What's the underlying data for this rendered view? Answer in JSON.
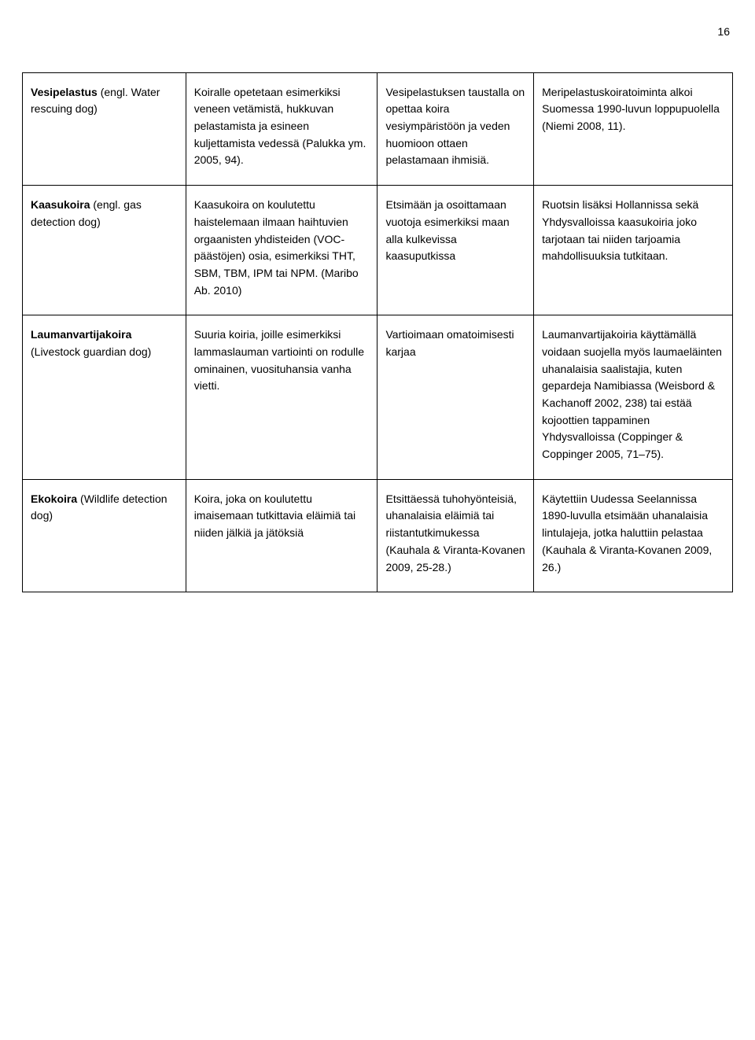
{
  "page_number": "16",
  "rows": [
    {
      "term_bold": "Vesipelastus",
      "term_rest": " (engl. Water rescuing dog)",
      "c2": "Koiralle opetetaan esimerkiksi veneen vetämistä, hukkuvan pelastamista ja esineen kuljettamista vedessä (Palukka ym. 2005, 94).",
      "c3": "Vesipelastuksen taustalla on opettaa koira vesiympäristöön ja veden huomioon ottaen pelastamaan ihmisiä.",
      "c4": "Meripelastuskoiratoiminta alkoi Suomessa 1990-luvun loppupuolella (Niemi 2008, 11)."
    },
    {
      "term_bold": "Kaasukoira",
      "term_rest": " (engl. gas detection dog)",
      "c2": "Kaasukoira on koulutettu haistelemaan ilmaan haihtuvien orgaanisten yhdisteiden (VOC-päästöjen) osia, esimerkiksi THT, SBM, TBM, IPM tai NPM. (Maribo Ab. 2010)",
      "c3": "Etsimään ja osoittamaan vuotoja esimerkiksi maan alla kulkevissa kaasuputkissa",
      "c4": "Ruotsin lisäksi Hollannissa sekä Yhdysvalloissa kaasukoiria joko tarjotaan tai niiden tarjoamia mahdollisuuksia tutkitaan."
    },
    {
      "term_bold": "Laumanvartijakoira",
      "term_rest": " (Livestock guardian dog)",
      "c2": "Suuria koiria, joille esimerkiksi lammaslauman vartiointi on rodulle ominainen, vuosituhansia vanha vietti.",
      "c3": "Vartioimaan omatoimisesti karjaa",
      "c4": "Laumanvartijakoiria käyttämällä voidaan suojella myös laumaeläinten uhanalaisia saalistajia, kuten gepardeja Namibiassa (Weisbord & Kachanoff 2002, 238) tai estää kojoottien tappaminen Yhdysvalloissa (Coppinger & Coppinger 2005, 71–75)."
    },
    {
      "term_bold": "Ekokoira",
      "term_rest": " (Wildlife detection dog)",
      "c2": "Koira, joka on koulutettu imaisemaan tutkittavia eläimiä tai niiden jälkiä ja jätöksiä",
      "c3": "Etsittäessä tuhohyönteisiä, uhanalaisia eläimiä tai riistantutkimukessa (Kauhala & Viranta-Kovanen 2009, 25-28.)",
      "c4": "Käytettiin Uudessa Seelannissa 1890-luvulla etsimään uhanalaisia lintulajeja, jotka haluttiin pelastaa (Kauhala & Viranta-Kovanen 2009, 26.)"
    }
  ]
}
